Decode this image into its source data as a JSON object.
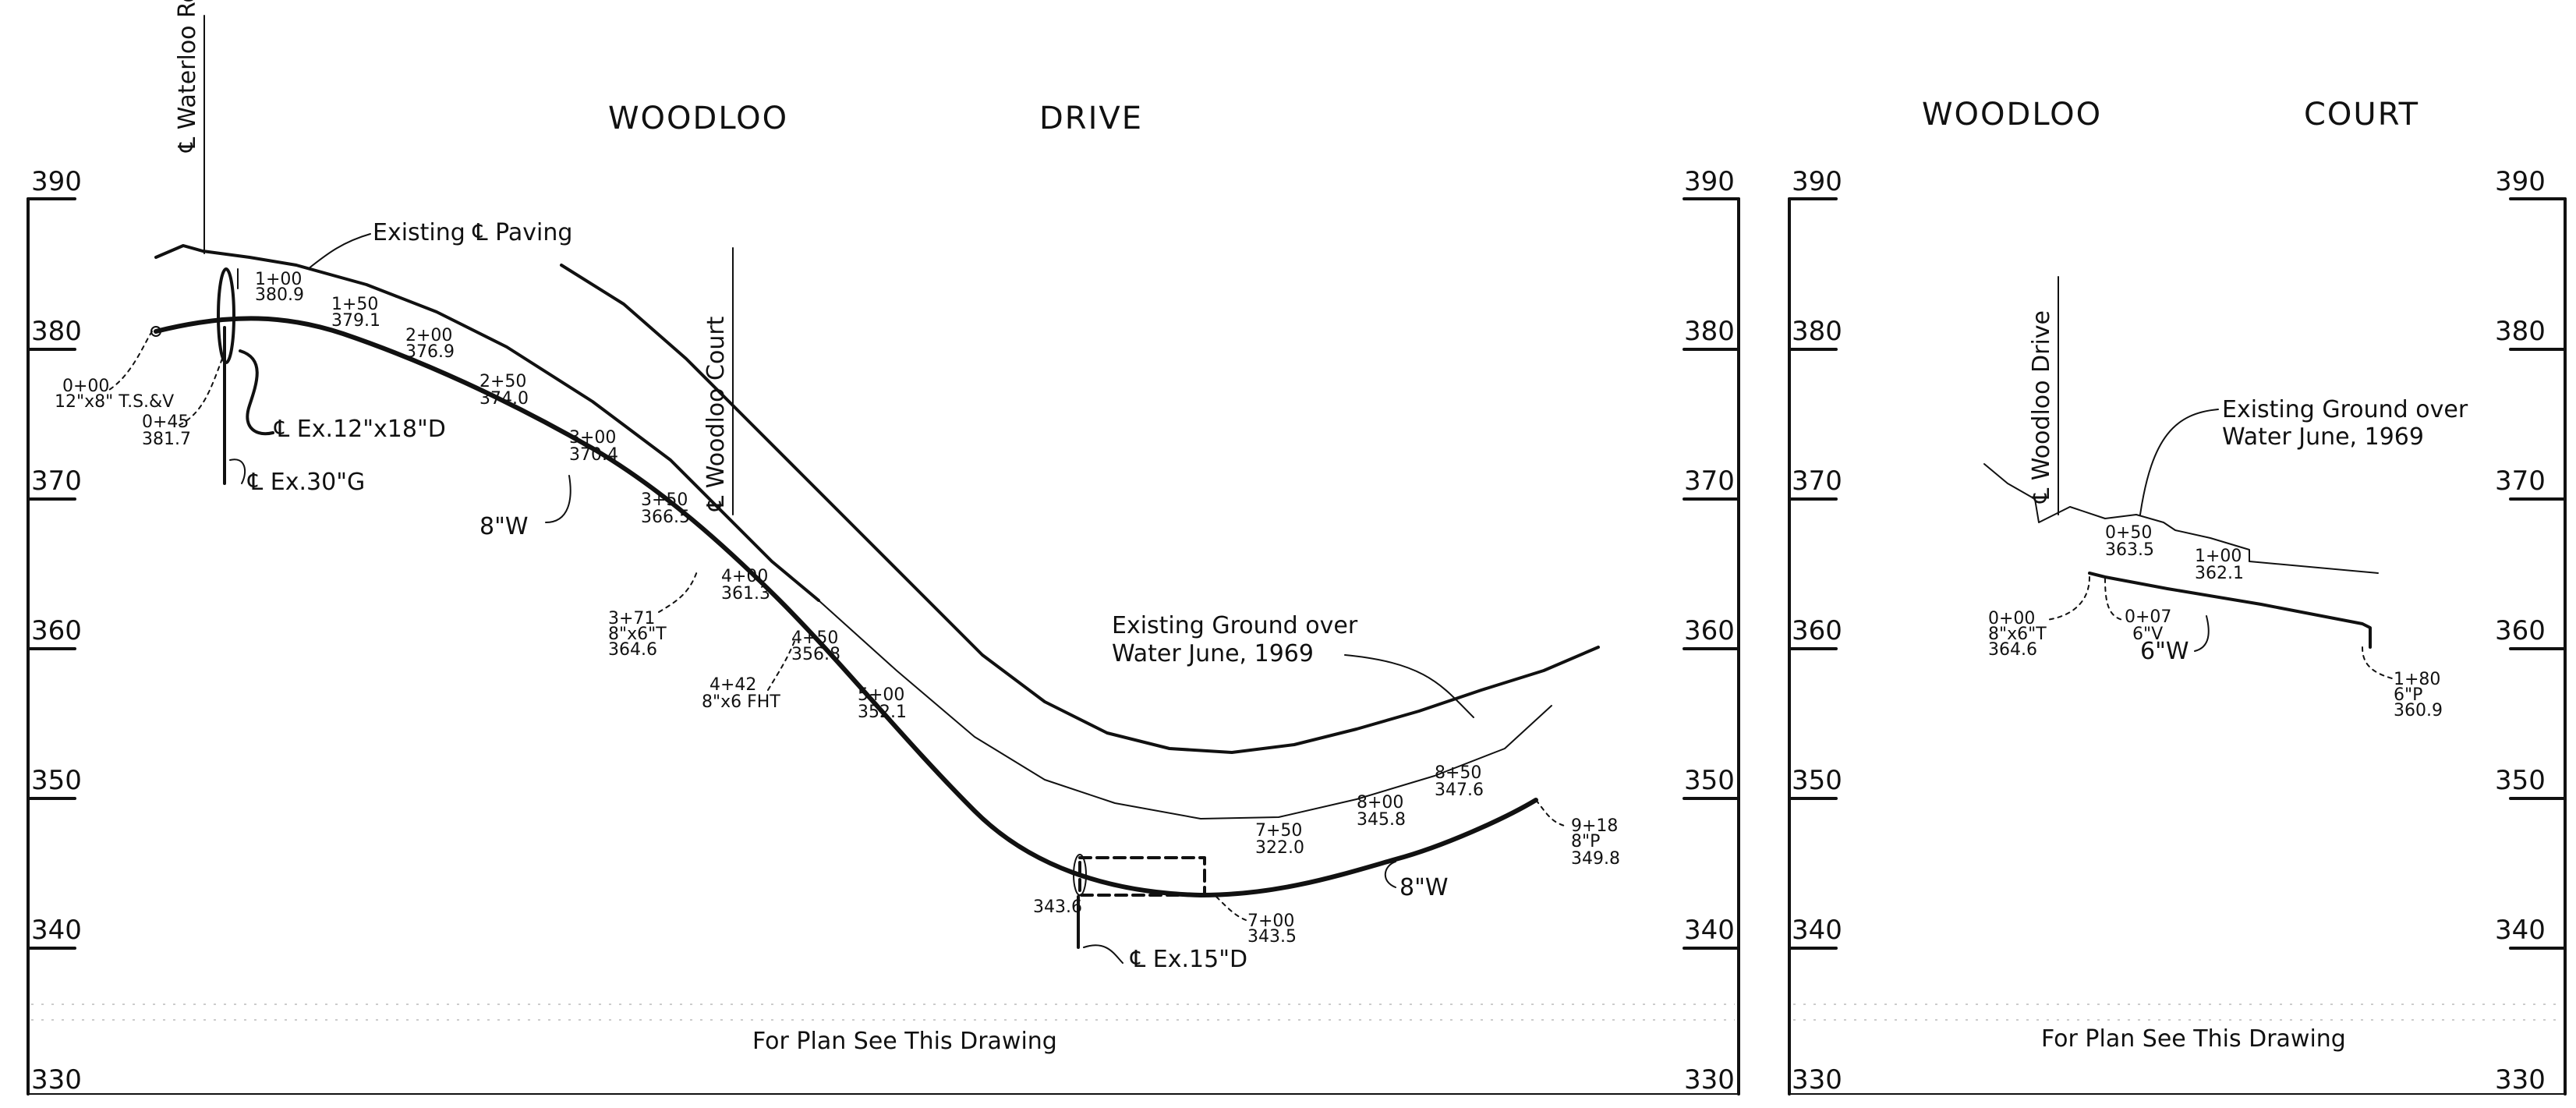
{
  "left_panel": {
    "title_1": "WOODLOO",
    "title_2": "DRIVE",
    "y_ticks": [
      "390",
      "380",
      "370",
      "360",
      "350",
      "340",
      "330"
    ],
    "road_label": "℄ Waterloo Road",
    "court_label": "℄ Woodloo Court",
    "notes": {
      "existing_paving": "Existing ℄ Paving",
      "ex_12x18": "℄ Ex.12\"x18\"D",
      "ex_30g": "℄ Ex.30\"G",
      "w8": "8\"W",
      "w8b": "8\"W",
      "ex_15d": "℄ Ex.15\"D",
      "ground_1": "Existing Ground over",
      "ground_2": "Water June, 1969",
      "plan_note": "For Plan See This Drawing"
    },
    "stations": [
      {
        "sta": "0+00",
        "val": "12\"x8\" T.S.&V"
      },
      {
        "sta": "0+45",
        "val": "381.7"
      },
      {
        "sta": "1+00",
        "val": "380.9"
      },
      {
        "sta": "1+50",
        "val": "379.1"
      },
      {
        "sta": "2+00",
        "val": "376.9"
      },
      {
        "sta": "2+50",
        "val": "374.0"
      },
      {
        "sta": "3+00",
        "val": "370.4"
      },
      {
        "sta": "3+50",
        "val": "366.5"
      },
      {
        "sta": "3+71",
        "val": "8\"x6\"T",
        "val2": "364.6"
      },
      {
        "sta": "4+00",
        "val": "361.3"
      },
      {
        "sta": "4+42",
        "val": "8\"x6 FHT"
      },
      {
        "sta": "4+50",
        "val": "356.8"
      },
      {
        "sta": "5+00",
        "val": "352.1"
      },
      {
        "sta": "7+00",
        "val": "343.5"
      },
      {
        "sta": "7+50",
        "val": "322.0"
      },
      {
        "sta": "8+00",
        "val": "345.8"
      },
      {
        "sta": "8+50",
        "val": "347.6"
      },
      {
        "sta": "9+18",
        "val": "8\"P",
        "val2": "349.8"
      },
      {
        "sta": "",
        "val": "343.6"
      }
    ]
  },
  "right_panel": {
    "title_1": "WOODLOO",
    "title_2": "COURT",
    "y_ticks": [
      "390",
      "380",
      "370",
      "360",
      "350",
      "340",
      "330"
    ],
    "drive_label": "℄ Woodloo Drive",
    "notes": {
      "ground_1": "Existing Ground over",
      "ground_2": "Water June, 1969",
      "w6": "6\"W",
      "plan_note": "For Plan See This Drawing"
    },
    "stations": [
      {
        "sta": "0+00",
        "val": "8\"x6\"T",
        "val2": "364.6"
      },
      {
        "sta": "0+07",
        "val": "6\"V"
      },
      {
        "sta": "0+50",
        "val": "363.5"
      },
      {
        "sta": "1+00",
        "val": "362.1"
      },
      {
        "sta": "1+80",
        "val": "6\"P",
        "val2": "360.9"
      }
    ]
  }
}
